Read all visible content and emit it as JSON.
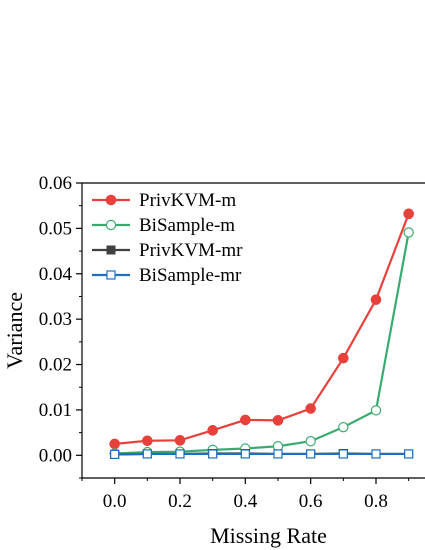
{
  "chart_data": {
    "type": "line",
    "title": "",
    "xlabel": "Missing Rate",
    "ylabel": "Variance",
    "xlim": [
      -0.1,
      0.95
    ],
    "ylim": [
      -0.005,
      0.06
    ],
    "x_ticks": [
      0.0,
      0.2,
      0.4,
      0.6,
      0.8
    ],
    "x_tick_labels": [
      "0.0",
      "0.2",
      "0.4",
      "0.6",
      "0.8"
    ],
    "y_ticks": [
      0.0,
      0.01,
      0.02,
      0.03,
      0.04,
      0.05,
      0.06
    ],
    "y_tick_labels": [
      "0.00",
      "0.01",
      "0.02",
      "0.03",
      "0.04",
      "0.05",
      "0.06"
    ],
    "grid": false,
    "legend_position": "top-left",
    "x": [
      0.0,
      0.1,
      0.2,
      0.3,
      0.4,
      0.5,
      0.6,
      0.7,
      0.8,
      0.9
    ],
    "series": [
      {
        "name": "PrivKVM-m",
        "color": "#e8413c",
        "marker": "filled-circle",
        "values": [
          0.0025,
          0.0032,
          0.0033,
          0.0055,
          0.0078,
          0.0077,
          0.0103,
          0.0214,
          0.0343,
          0.0532
        ]
      },
      {
        "name": "BiSample-m",
        "color": "#3aab6e",
        "marker": "open-circle",
        "values": [
          0.0004,
          0.0007,
          0.0008,
          0.0012,
          0.0015,
          0.002,
          0.0031,
          0.0062,
          0.0099,
          0.0491
        ]
      },
      {
        "name": "PrivKVM-mr",
        "color": "#404040",
        "marker": "filled-square",
        "values": [
          0.0002,
          0.0003,
          0.0003,
          0.0004,
          0.0004,
          0.0003,
          0.0003,
          0.0004,
          0.0003,
          0.0003
        ]
      },
      {
        "name": "BiSample-mr",
        "color": "#1f6fbf",
        "marker": "open-square",
        "values": [
          0.0002,
          0.0003,
          0.0003,
          0.0003,
          0.0003,
          0.0003,
          0.0003,
          0.0003,
          0.0003,
          0.0003
        ]
      }
    ]
  }
}
